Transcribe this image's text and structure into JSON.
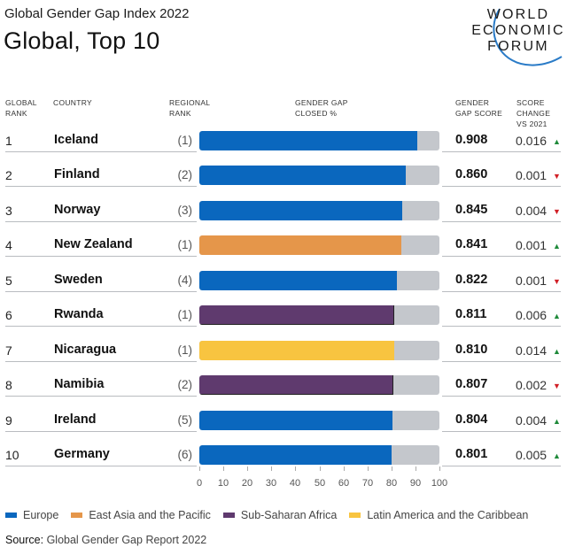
{
  "header": {
    "subtitle": "Global Gender Gap Index 2022",
    "title": "Global, Top 10",
    "logo": [
      "WORLD",
      "ECONOMIC",
      "FORUM"
    ]
  },
  "columns": {
    "global_rank": [
      "GLOBAL",
      "RANK"
    ],
    "country": [
      "COUNTRY"
    ],
    "regional_rank": [
      "REGIONAL",
      "RANK"
    ],
    "gap_closed": [
      "GENDER GAP",
      "CLOSED %"
    ],
    "score": [
      "GENDER",
      "GAP SCORE"
    ],
    "change": [
      "SCORE",
      "CHANGE",
      "VS 2021"
    ]
  },
  "colors": {
    "Europe": "#0a67be",
    "East Asia and the Pacific": "#e5964a",
    "Sub-Saharan Africa": "#5f3a6e",
    "Latin America and the Caribbean": "#f8c440",
    "remainder": "#c4c7cc",
    "up": "#1f8a3a",
    "down": "#d11f26"
  },
  "chart_data": {
    "type": "bar",
    "title": "Global, Top 10",
    "subtitle": "Global Gender Gap Index 2022",
    "xlabel": "GENDER GAP CLOSED %",
    "xlim": [
      0,
      100
    ],
    "xticks": [
      0,
      10,
      20,
      30,
      40,
      50,
      60,
      70,
      80,
      90,
      100
    ],
    "legend_position": "bottom",
    "legend": [
      "Europe",
      "East Asia and the Pacific",
      "Sub-Saharan Africa",
      "Latin America and the Caribbean"
    ],
    "rows": [
      {
        "global_rank": "1",
        "country": "Iceland",
        "regional_rank": "(1)",
        "region": "Europe",
        "score": "0.908",
        "closed_pct": 90.8,
        "change": "0.016",
        "direction": "up"
      },
      {
        "global_rank": "2",
        "country": "Finland",
        "regional_rank": "(2)",
        "region": "Europe",
        "score": "0.860",
        "closed_pct": 86.0,
        "change": "0.001",
        "direction": "down"
      },
      {
        "global_rank": "3",
        "country": "Norway",
        "regional_rank": "(3)",
        "region": "Europe",
        "score": "0.845",
        "closed_pct": 84.5,
        "change": "0.004",
        "direction": "down"
      },
      {
        "global_rank": "4",
        "country": "New Zealand",
        "regional_rank": "(1)",
        "region": "East Asia and the Pacific",
        "score": "0.841",
        "closed_pct": 84.1,
        "change": "0.001",
        "direction": "up"
      },
      {
        "global_rank": "5",
        "country": "Sweden",
        "regional_rank": "(4)",
        "region": "Europe",
        "score": "0.822",
        "closed_pct": 82.2,
        "change": "0.001",
        "direction": "down"
      },
      {
        "global_rank": "6",
        "country": "Rwanda",
        "regional_rank": "(1)",
        "region": "Sub-Saharan Africa",
        "score": "0.811",
        "closed_pct": 81.1,
        "change": "0.006",
        "direction": "up"
      },
      {
        "global_rank": "7",
        "country": "Nicaragua",
        "regional_rank": "(1)",
        "region": "Latin America and the Caribbean",
        "score": "0.810",
        "closed_pct": 81.0,
        "change": "0.014",
        "direction": "up"
      },
      {
        "global_rank": "8",
        "country": "Namibia",
        "regional_rank": "(2)",
        "region": "Sub-Saharan Africa",
        "score": "0.807",
        "closed_pct": 80.7,
        "change": "0.002",
        "direction": "down"
      },
      {
        "global_rank": "9",
        "country": "Ireland",
        "regional_rank": "(5)",
        "region": "Europe",
        "score": "0.804",
        "closed_pct": 80.4,
        "change": "0.004",
        "direction": "up"
      },
      {
        "global_rank": "10",
        "country": "Germany",
        "regional_rank": "(6)",
        "region": "Europe",
        "score": "0.801",
        "closed_pct": 80.1,
        "change": "0.005",
        "direction": "up"
      }
    ]
  },
  "footer": {
    "source_label": "Source:",
    "source_text": " Global Gender Gap Report 2022"
  },
  "icons": {
    "up": "▲",
    "down": "▼"
  }
}
